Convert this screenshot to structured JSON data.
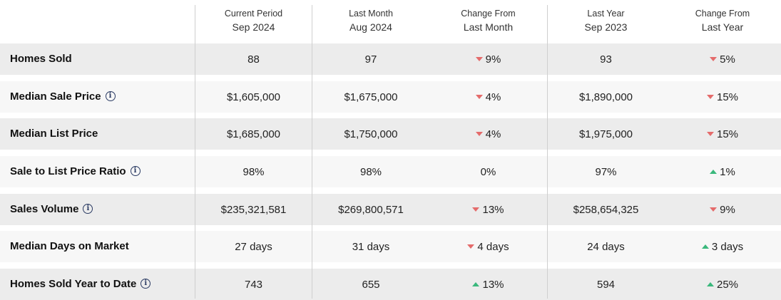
{
  "headers": [
    {
      "line1": "Current Period",
      "line2": "Sep 2024"
    },
    {
      "line1": "Last Month",
      "line2": "Aug 2024"
    },
    {
      "line1": "Change From",
      "line2": "Last Month"
    },
    {
      "line1": "Last Year",
      "line2": "Sep 2023"
    },
    {
      "line1": "Change From",
      "line2": "Last Year"
    }
  ],
  "rows": [
    {
      "label": "Homes Sold",
      "info": false,
      "current": "88",
      "last_month": "97",
      "change_month": {
        "text": "9%",
        "dir": "down"
      },
      "last_year": "93",
      "change_year": {
        "text": "5%",
        "dir": "down"
      }
    },
    {
      "label": "Median Sale Price",
      "info": true,
      "current": "$1,605,000",
      "last_month": "$1,675,000",
      "change_month": {
        "text": "4%",
        "dir": "down"
      },
      "last_year": "$1,890,000",
      "change_year": {
        "text": "15%",
        "dir": "down"
      }
    },
    {
      "label": "Median List Price",
      "info": false,
      "current": "$1,685,000",
      "last_month": "$1,750,000",
      "change_month": {
        "text": "4%",
        "dir": "down"
      },
      "last_year": "$1,975,000",
      "change_year": {
        "text": "15%",
        "dir": "down"
      }
    },
    {
      "label": "Sale to List Price Ratio",
      "info": true,
      "current": "98%",
      "last_month": "98%",
      "change_month": {
        "text": "0%",
        "dir": "none"
      },
      "last_year": "97%",
      "change_year": {
        "text": "1%",
        "dir": "up"
      }
    },
    {
      "label": "Sales Volume",
      "info": true,
      "current": "$235,321,581",
      "last_month": "$269,800,571",
      "change_month": {
        "text": "13%",
        "dir": "down"
      },
      "last_year": "$258,654,325",
      "change_year": {
        "text": "9%",
        "dir": "down"
      }
    },
    {
      "label": "Median Days on Market",
      "info": false,
      "current": "27 days",
      "last_month": "31 days",
      "change_month": {
        "text": "4 days",
        "dir": "down"
      },
      "last_year": "24 days",
      "change_year": {
        "text": "3 days",
        "dir": "up"
      }
    },
    {
      "label": "Homes Sold Year to Date",
      "info": true,
      "current": "743",
      "last_month": "655",
      "change_month": {
        "text": "13%",
        "dir": "up"
      },
      "last_year": "594",
      "change_year": {
        "text": "25%",
        "dir": "up"
      }
    }
  ],
  "info_glyph": "i",
  "colors": {
    "down": "#e46b6b",
    "up": "#3ab87c",
    "row_gray": "#ececec",
    "row_light": "#f7f7f7",
    "info": "#2a3a63"
  }
}
